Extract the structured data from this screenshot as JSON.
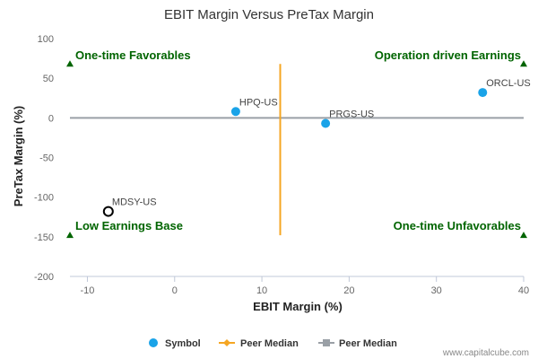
{
  "chart_data": {
    "type": "scatter",
    "title": "EBIT Margin Versus PreTax Margin",
    "xlabel": "EBIT Margin (%)",
    "ylabel": "PreTax Margin (%)",
    "xlim": [
      -12,
      40
    ],
    "ylim": [
      -200,
      100
    ],
    "xticks": [
      -10,
      0,
      10,
      20,
      30,
      40
    ],
    "yticks": [
      100,
      50,
      0,
      -50,
      -100,
      -150,
      -200
    ],
    "points": [
      {
        "label": "HPQ-US",
        "x": 7,
        "y": 8,
        "style": "filled"
      },
      {
        "label": "PRGS-US",
        "x": 17.3,
        "y": -7,
        "style": "filled"
      },
      {
        "label": "ORCL-US",
        "x": 35.3,
        "y": 32,
        "style": "filled"
      },
      {
        "label": "MDSY-US",
        "x": -7.6,
        "y": -118,
        "style": "hollow"
      }
    ],
    "peer_median_x": 12.1,
    "peer_median_x_range": [
      -148,
      68
    ],
    "peer_median_y": 0,
    "quadrant_labels": {
      "top_left": "One-time Favorables",
      "top_right": "Operation driven Earnings",
      "bottom_left": "Low Earnings Base",
      "bottom_right": "One-time Unfavorables"
    },
    "quadrant_marker_y": [
      68,
      -148
    ],
    "legend": {
      "position": "bottom",
      "items": [
        {
          "label": "Symbol",
          "color": "#1aa3e8"
        },
        {
          "label": "Peer Median",
          "color": "#f5a623"
        },
        {
          "label": "Peer Median",
          "color": "#9aa0a6"
        }
      ]
    },
    "colors": {
      "point": "#1aa3e8",
      "vertical_median": "#f5a623",
      "horizontal_median": "#9aa0a6",
      "quadrant_text": "#006400"
    },
    "credit": "www.capitalcube.com"
  }
}
